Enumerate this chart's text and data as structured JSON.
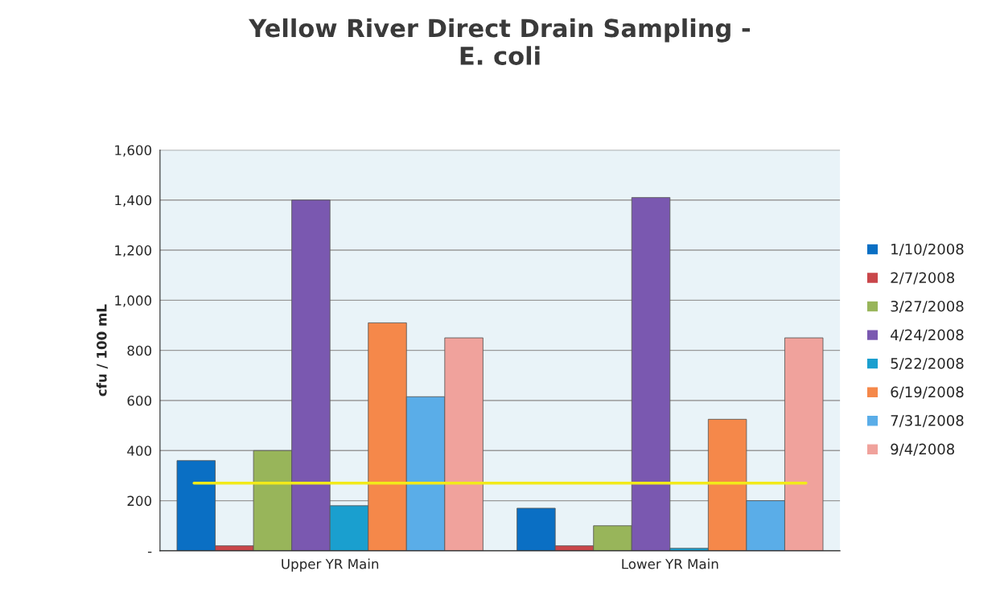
{
  "chart_data": {
    "type": "bar",
    "title": "Yellow River Direct Drain Sampling -\nE. coli",
    "ylabel": "cfu / 100 mL",
    "categories": [
      "Upper YR Main",
      "Lower YR Main"
    ],
    "series": [
      {
        "name": "1/10/2008",
        "color": "#0a6fc4",
        "values": [
          360,
          170
        ]
      },
      {
        "name": "2/7/2008",
        "color": "#c9464a",
        "values": [
          20,
          20
        ]
      },
      {
        "name": "3/27/2008",
        "color": "#98b55a",
        "values": [
          400,
          100
        ]
      },
      {
        "name": "4/24/2008",
        "color": "#7a58b0",
        "values": [
          1400,
          1410
        ]
      },
      {
        "name": "5/22/2008",
        "color": "#1a9fcf",
        "values": [
          180,
          10
        ]
      },
      {
        "name": "6/19/2008",
        "color": "#f5884a",
        "values": [
          910,
          525
        ]
      },
      {
        "name": "7/31/2008",
        "color": "#5aade8",
        "values": [
          615,
          200
        ]
      },
      {
        "name": "9/4/2008",
        "color": "#f0a29c",
        "values": [
          850,
          850
        ]
      }
    ],
    "ylim": [
      0,
      1600
    ],
    "yticks": [
      {
        "value": 0,
        "label": "-"
      },
      200,
      400,
      600,
      800,
      {
        "value": 1000,
        "label": "1,000"
      },
      {
        "value": 1200,
        "label": "1,200"
      },
      {
        "value": 1400,
        "label": "1,400"
      },
      {
        "value": 1600,
        "label": "1,600"
      }
    ],
    "ref_lines": [
      {
        "axis": "y",
        "value": 270,
        "color": "#f2ea1a"
      }
    ],
    "grid": "y",
    "legend": "right"
  }
}
